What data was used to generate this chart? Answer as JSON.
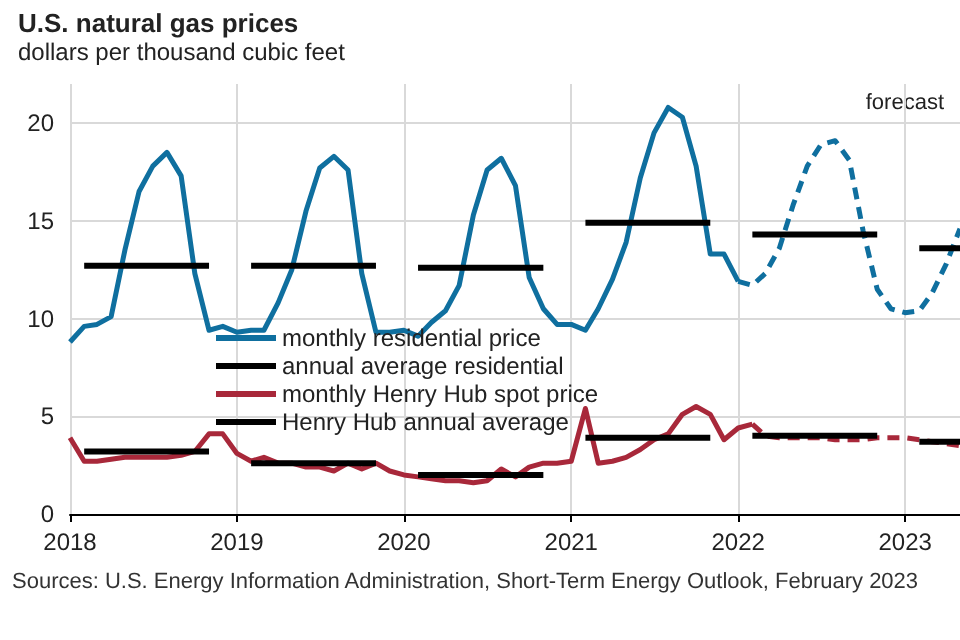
{
  "chart_data": {
    "type": "line",
    "title": "U.S. natural gas prices",
    "subtitle": "dollars per thousand cubic feet",
    "annotations": [
      "forecast",
      "Sources: U.S. Energy Information Administration, Short-Term Energy Outlook, February 2023"
    ],
    "xlim": [
      "2018-01",
      "2023-05"
    ],
    "xticks": [
      "2018",
      "2019",
      "2020",
      "2021",
      "2022",
      "2023"
    ],
    "ylim": [
      0,
      22
    ],
    "yticks": [
      0,
      5,
      10,
      15,
      20
    ],
    "grid": true,
    "legend": "center",
    "marker": "none",
    "series": [
      {
        "name": "monthly residential price",
        "color": "#0f6f9f",
        "line_style": "solid",
        "x": [
          "2018-01",
          "2018-02",
          "2018-03",
          "2018-04",
          "2018-05",
          "2018-06",
          "2018-07",
          "2018-08",
          "2018-09",
          "2018-10",
          "2018-11",
          "2018-12",
          "2019-01",
          "2019-02",
          "2019-03",
          "2019-04",
          "2019-05",
          "2019-06",
          "2019-07",
          "2019-08",
          "2019-09",
          "2019-10",
          "2019-11",
          "2019-12",
          "2020-01",
          "2020-02",
          "2020-03",
          "2020-04",
          "2020-05",
          "2020-06",
          "2020-07",
          "2020-08",
          "2020-09",
          "2020-10",
          "2020-11",
          "2020-12",
          "2021-01",
          "2021-02",
          "2021-03",
          "2021-04",
          "2021-05",
          "2021-06",
          "2021-07",
          "2021-08",
          "2021-09",
          "2021-10",
          "2021-11",
          "2021-12",
          "2022-01"
        ],
        "values": [
          8.8,
          9.6,
          9.7,
          10.1,
          13.5,
          16.5,
          17.8,
          18.5,
          17.3,
          12.3,
          9.4,
          9.6,
          9.3,
          9.4,
          9.4,
          10.8,
          12.5,
          15.5,
          17.7,
          18.3,
          17.6,
          12.3,
          9.3,
          9.3,
          9.4,
          9.1,
          9.8,
          10.4,
          11.7,
          15.3,
          17.6,
          18.2,
          16.8,
          12.1,
          10.5,
          9.7,
          9.7,
          9.4,
          10.5,
          12.0,
          13.9,
          17.2,
          19.5,
          20.8,
          20.3,
          17.8,
          13.3,
          13.3,
          11.9
        ]
      },
      {
        "name": "annual average residential",
        "color": "#000000",
        "line_style": "solid",
        "x": [
          "2018-02",
          "2018-11",
          "2018-12",
          "2019-02",
          "2019-11",
          "2019-12",
          "2020-02",
          "2020-11",
          "2020-12",
          "2021-02",
          "2021-11",
          "2021-12",
          "2022-02",
          "2022-11",
          "2022-12",
          "2023-02",
          "2023-05"
        ],
        "values": [
          12.7,
          12.7,
          null,
          12.7,
          12.7,
          null,
          12.6,
          12.6,
          null,
          14.9,
          14.9,
          null,
          14.3,
          14.3,
          null,
          13.6,
          13.6
        ]
      },
      {
        "name": "monthly Henry Hub spot price",
        "color": "#a8283a",
        "line_style": "solid",
        "x": [
          "2018-01",
          "2018-02",
          "2018-03",
          "2018-04",
          "2018-05",
          "2018-06",
          "2018-07",
          "2018-08",
          "2018-09",
          "2018-10",
          "2018-11",
          "2018-12",
          "2019-01",
          "2019-02",
          "2019-03",
          "2019-04",
          "2019-05",
          "2019-06",
          "2019-07",
          "2019-08",
          "2019-09",
          "2019-10",
          "2019-11",
          "2019-12",
          "2020-01",
          "2020-02",
          "2020-03",
          "2020-04",
          "2020-05",
          "2020-06",
          "2020-07",
          "2020-08",
          "2020-09",
          "2020-10",
          "2020-11",
          "2020-12",
          "2021-01",
          "2021-02",
          "2021-03",
          "2021-04",
          "2021-05",
          "2021-06",
          "2021-07",
          "2021-08",
          "2021-09",
          "2021-10",
          "2021-11",
          "2021-12",
          "2022-01",
          "2022-02"
        ],
        "values": [
          3.9,
          2.7,
          2.7,
          2.8,
          2.9,
          2.9,
          2.9,
          2.9,
          3.0,
          3.2,
          4.1,
          4.1,
          3.1,
          2.7,
          2.9,
          2.6,
          2.6,
          2.4,
          2.4,
          2.2,
          2.6,
          2.3,
          2.6,
          2.2,
          2.0,
          1.9,
          1.8,
          1.7,
          1.7,
          1.6,
          1.7,
          2.3,
          1.9,
          2.4,
          2.6,
          2.6,
          2.7,
          5.4,
          2.6,
          2.7,
          2.9,
          3.3,
          3.8,
          4.1,
          5.1,
          5.5,
          5.1,
          3.8,
          4.4,
          4.6
        ]
      },
      {
        "name": "Henry Hub annual average",
        "color": "#000000",
        "line_style": "solid",
        "x": [
          "2018-02",
          "2018-11",
          "2018-12",
          "2019-02",
          "2019-11",
          "2019-12",
          "2020-02",
          "2020-11",
          "2020-12",
          "2021-02",
          "2021-11",
          "2021-12",
          "2022-02",
          "2022-11",
          "2022-12",
          "2023-02",
          "2023-05"
        ],
        "values": [
          3.2,
          3.2,
          null,
          2.6,
          2.6,
          null,
          2.0,
          2.0,
          null,
          3.9,
          3.9,
          null,
          4.0,
          4.0,
          null,
          3.7,
          3.7
        ]
      },
      {
        "color": "#0f6f9f",
        "line_style": "dashed",
        "x": [
          "2022-01",
          "2022-02",
          "2022-03",
          "2022-04",
          "2022-05",
          "2022-06",
          "2022-07",
          "2022-08",
          "2022-09",
          "2022-10",
          "2022-11",
          "2022-12",
          "2023-01",
          "2023-02",
          "2023-03",
          "2023-04",
          "2023-05"
        ],
        "values": [
          11.9,
          11.7,
          12.3,
          13.6,
          15.8,
          17.8,
          18.9,
          19.1,
          18.1,
          14.5,
          11.5,
          10.5,
          10.3,
          10.4,
          11.3,
          12.8,
          14.6
        ]
      },
      {
        "color": "#a8283a",
        "line_style": "dashed",
        "x": [
          "2022-02",
          "2022-03",
          "2022-04",
          "2022-05",
          "2022-06",
          "2022-07",
          "2022-08",
          "2022-09",
          "2022-10",
          "2022-11",
          "2022-12",
          "2023-01",
          "2023-02",
          "2023-03",
          "2023-04",
          "2023-05"
        ],
        "values": [
          4.6,
          4.0,
          3.9,
          3.9,
          3.9,
          3.9,
          3.8,
          3.8,
          3.8,
          3.9,
          3.9,
          3.9,
          3.8,
          3.7,
          3.6,
          3.5
        ]
      }
    ]
  }
}
